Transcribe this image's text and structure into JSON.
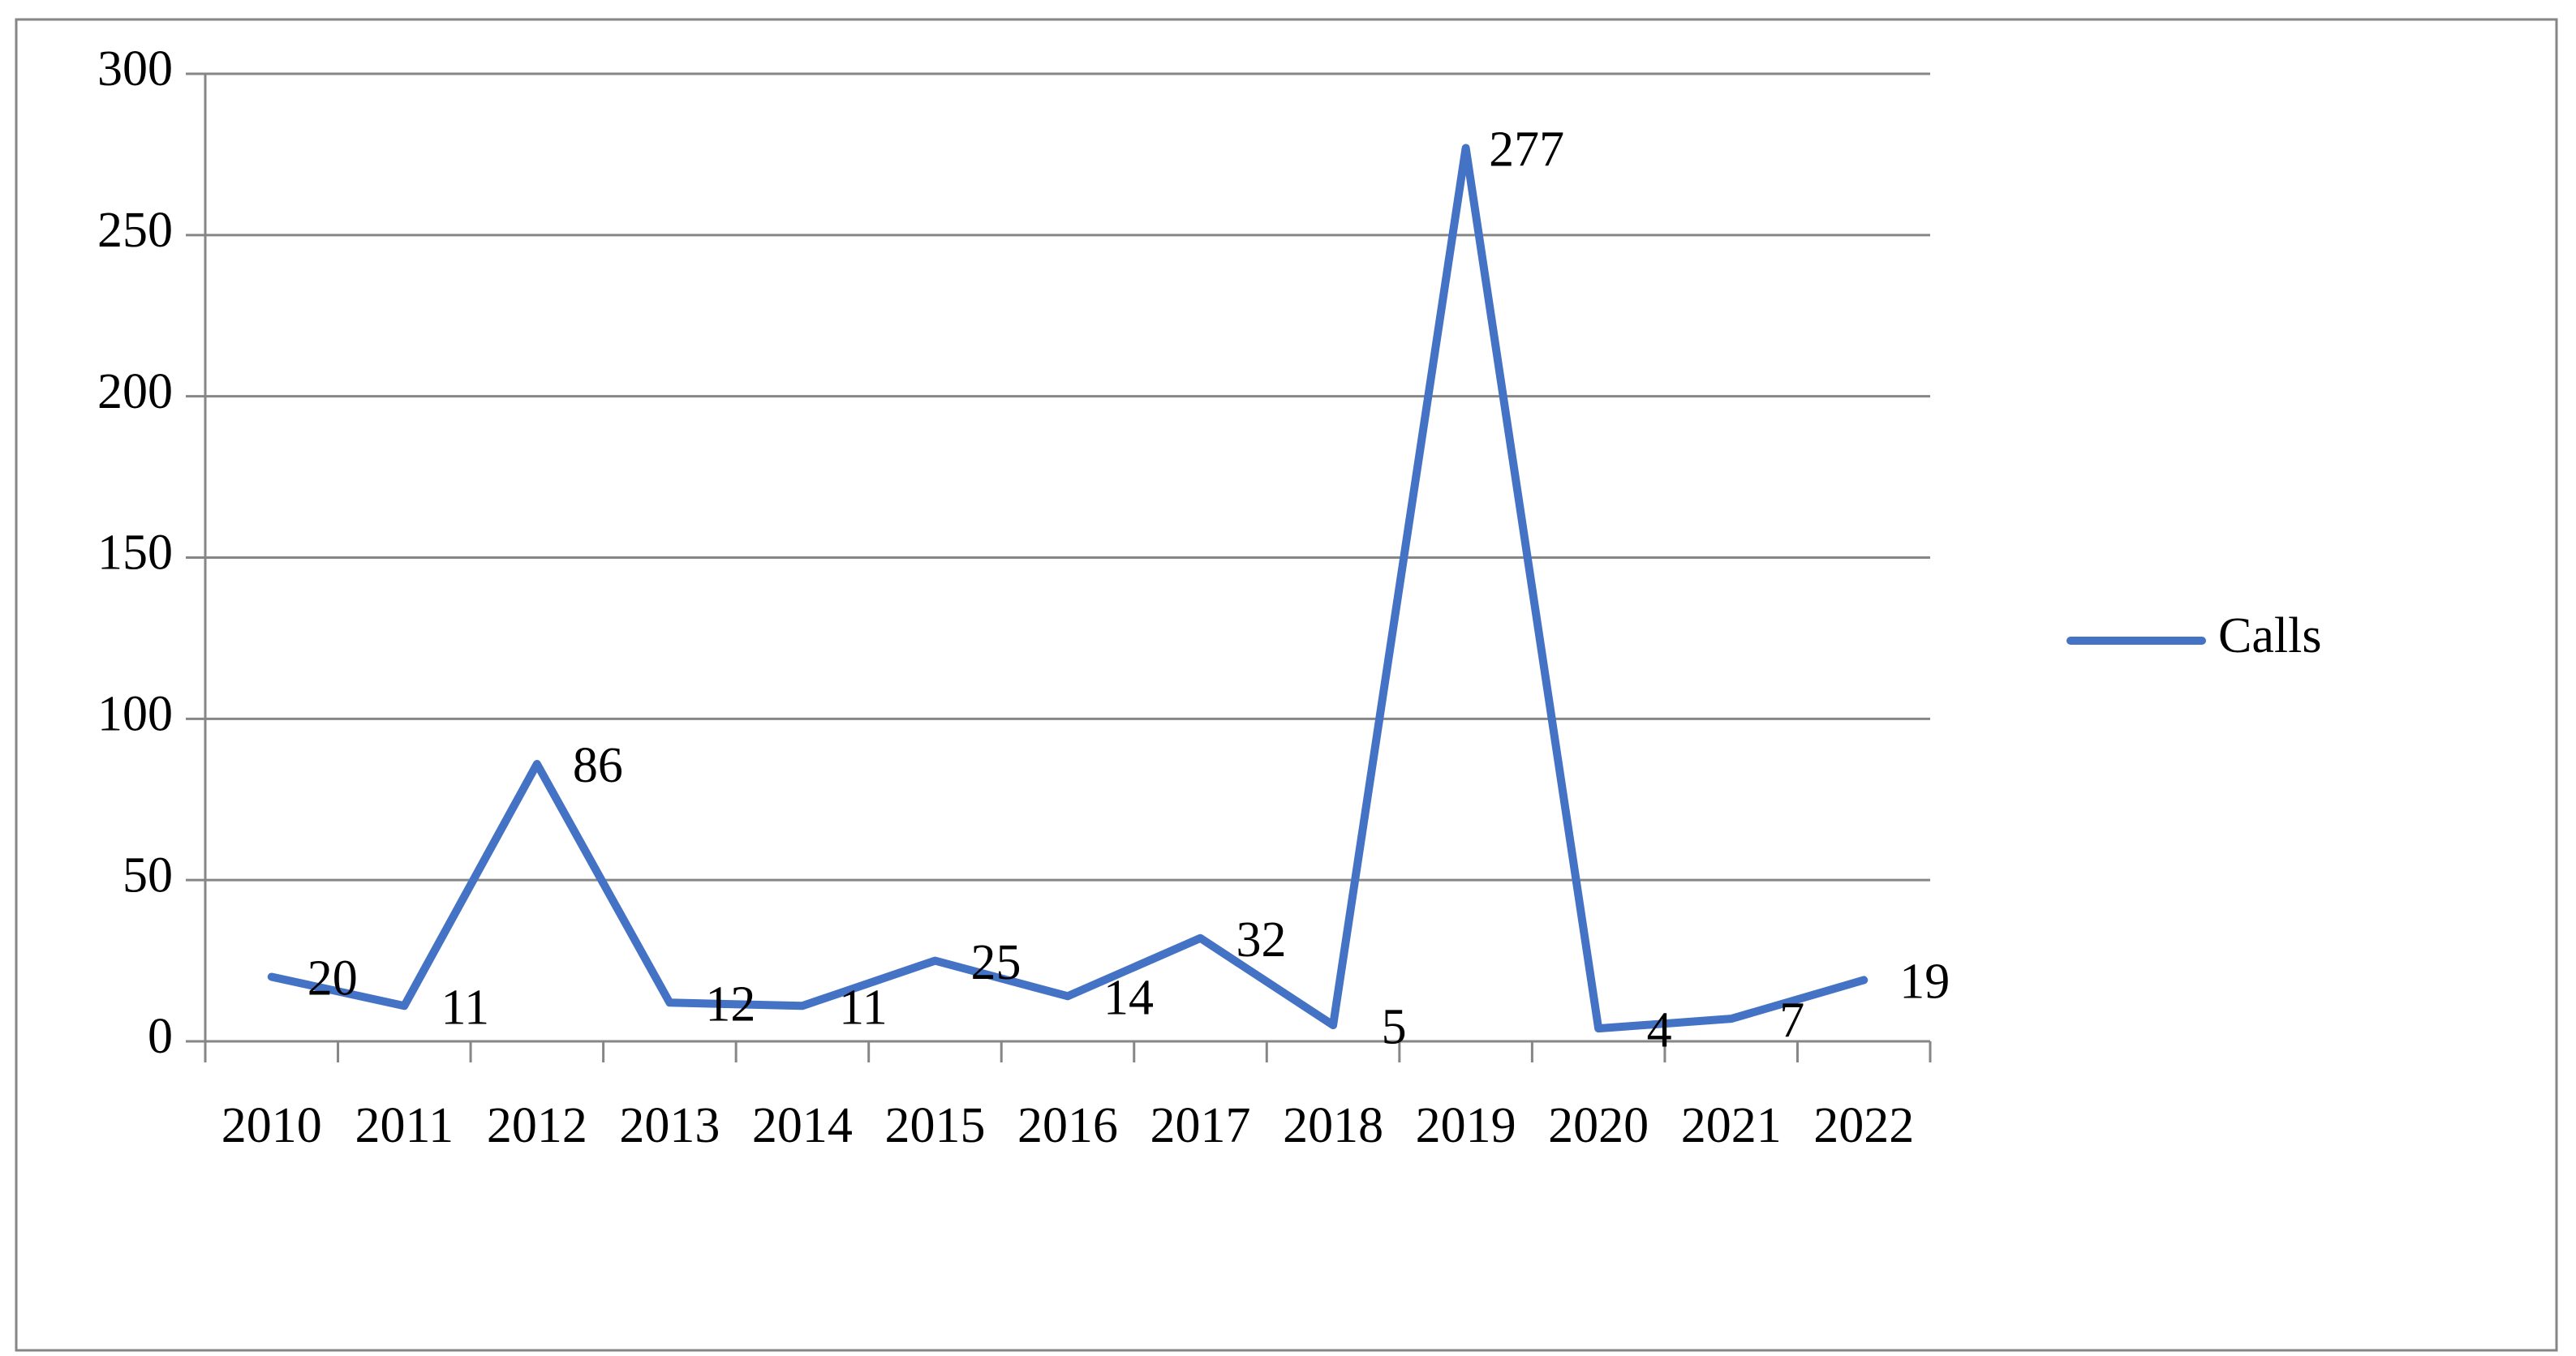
{
  "chart_data": {
    "type": "line",
    "categories": [
      "2010",
      "2011",
      "2012",
      "2013",
      "2014",
      "2015",
      "2016",
      "2017",
      "2018",
      "2019",
      "2020",
      "2021",
      "2022"
    ],
    "series": [
      {
        "name": "Calls",
        "color": "#4472c4",
        "values": [
          20,
          11,
          86,
          12,
          11,
          25,
          14,
          32,
          5,
          277,
          4,
          7,
          19
        ]
      }
    ],
    "ylim": [
      0,
      300
    ],
    "yticks": [
      0,
      50,
      100,
      150,
      200,
      250,
      300
    ],
    "grid": true,
    "legend": "right"
  }
}
